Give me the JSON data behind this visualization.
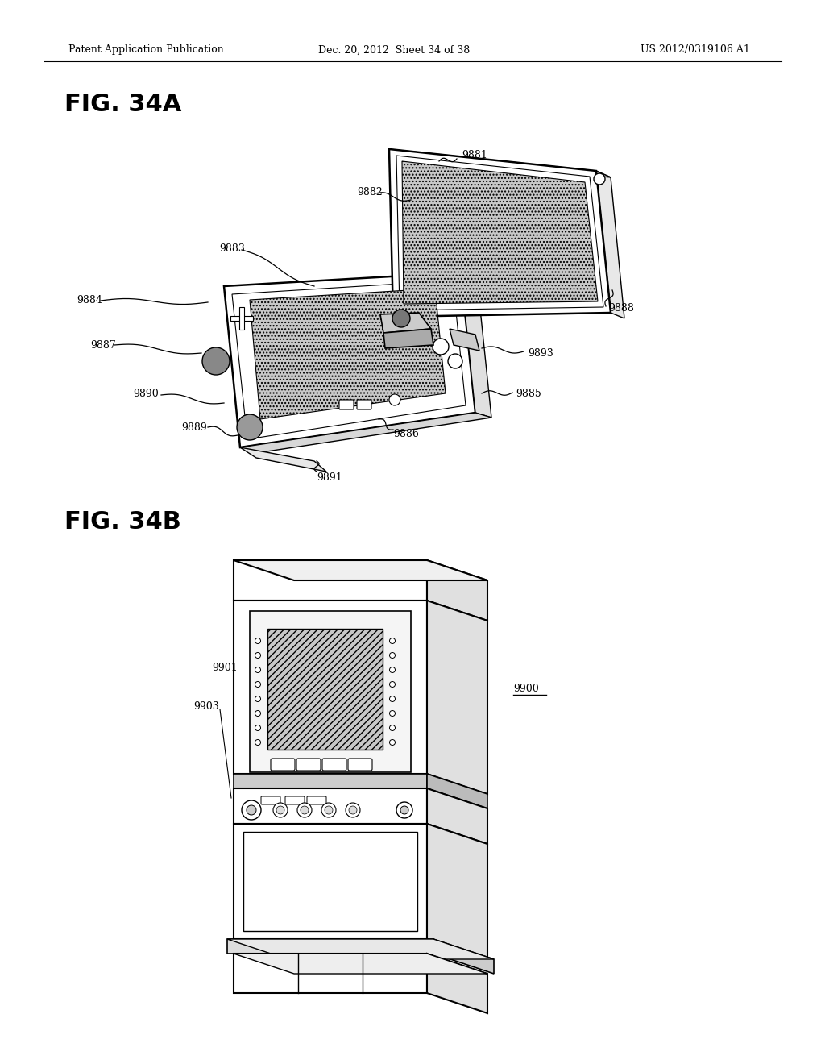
{
  "background_color": "#ffffff",
  "header_left": "Patent Application Publication",
  "header_middle": "Dec. 20, 2012  Sheet 34 of 38",
  "header_right": "US 2012/0319106 A1",
  "fig_label_A": "FIG. 34A",
  "fig_label_B": "FIG. 34B",
  "line_color": "#000000",
  "gray_dark": "#888888",
  "gray_mid": "#bbbbbb",
  "gray_light": "#e0e0e0"
}
